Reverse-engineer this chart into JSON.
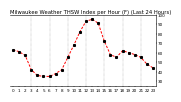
{
  "title": "Milwaukee Weather THSW Index per Hour (F) (Last 24 Hours)",
  "hours": [
    0,
    1,
    2,
    3,
    4,
    5,
    6,
    7,
    8,
    9,
    10,
    11,
    12,
    13,
    14,
    15,
    16,
    17,
    18,
    19,
    20,
    21,
    22,
    23
  ],
  "values": [
    63,
    61,
    57,
    42,
    36,
    35,
    35,
    38,
    42,
    55,
    68,
    82,
    93,
    95,
    91,
    72,
    58,
    55,
    62,
    60,
    58,
    55,
    48,
    44
  ],
  "line_color": "#ff0000",
  "dot_color": "#000000",
  "background_color": "#ffffff",
  "grid_color": "#888888",
  "ylim_min": 25,
  "ylim_max": 100,
  "yticks": [
    30,
    40,
    50,
    60,
    70,
    80,
    90,
    100
  ],
  "ylabel_right": true,
  "title_fontsize": 3.8,
  "tick_fontsize": 3.0,
  "line_width": 0.7,
  "marker_size": 1.2
}
